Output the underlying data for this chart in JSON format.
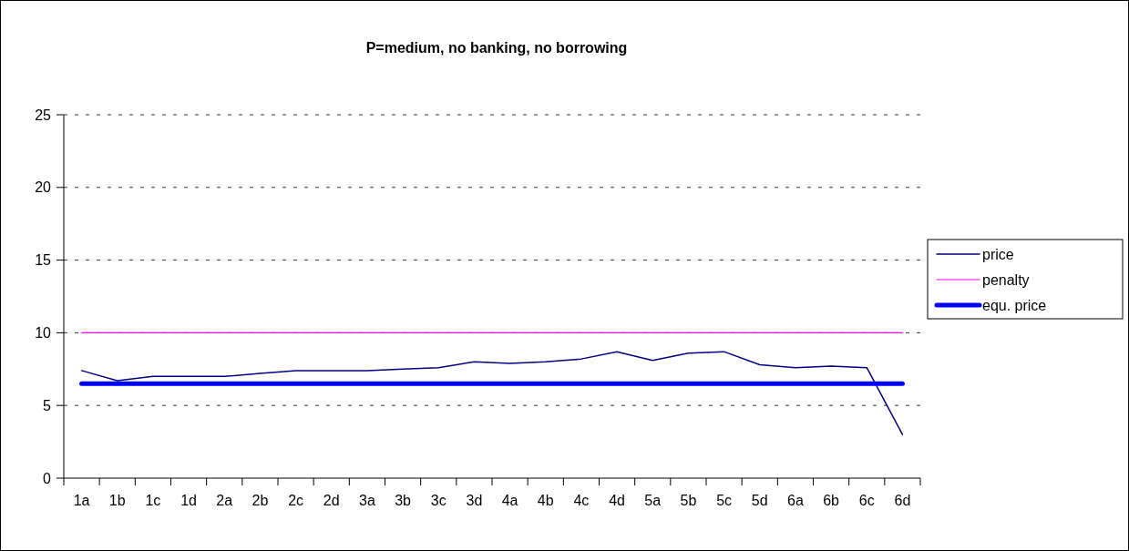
{
  "chart_data": {
    "type": "line",
    "title": "P=medium, no banking, no borrowing",
    "categories": [
      "1a",
      "1b",
      "1c",
      "1d",
      "2a",
      "2b",
      "2c",
      "2d",
      "3a",
      "3b",
      "3c",
      "3d",
      "4a",
      "4b",
      "4c",
      "4d",
      "5a",
      "5b",
      "5c",
      "5d",
      "6a",
      "6b",
      "6c",
      "6d"
    ],
    "series": [
      {
        "name": "price",
        "color": "#000080",
        "values": [
          7.4,
          6.7,
          7.0,
          7.0,
          7.0,
          7.2,
          7.4,
          7.4,
          7.4,
          7.5,
          7.6,
          8.0,
          7.9,
          8.0,
          8.2,
          8.7,
          8.1,
          8.6,
          8.7,
          7.8,
          7.6,
          7.7,
          7.6,
          3.0
        ]
      },
      {
        "name": "penalty",
        "color": "#ff00ff",
        "values": [
          10,
          10,
          10,
          10,
          10,
          10,
          10,
          10,
          10,
          10,
          10,
          10,
          10,
          10,
          10,
          10,
          10,
          10,
          10,
          10,
          10,
          10,
          10,
          10
        ]
      },
      {
        "name": "equ. price",
        "color": "#0000ff",
        "values": [
          6.5,
          6.5,
          6.5,
          6.5,
          6.5,
          6.5,
          6.5,
          6.5,
          6.5,
          6.5,
          6.5,
          6.5,
          6.5,
          6.5,
          6.5,
          6.5,
          6.5,
          6.5,
          6.5,
          6.5,
          6.5,
          6.5,
          6.5,
          6.5
        ]
      }
    ],
    "ylim": [
      0,
      25
    ],
    "yticks": [
      0,
      5,
      10,
      15,
      20,
      25
    ],
    "grid": "y",
    "legend": "right",
    "marker": "none",
    "line_style": "solid"
  }
}
